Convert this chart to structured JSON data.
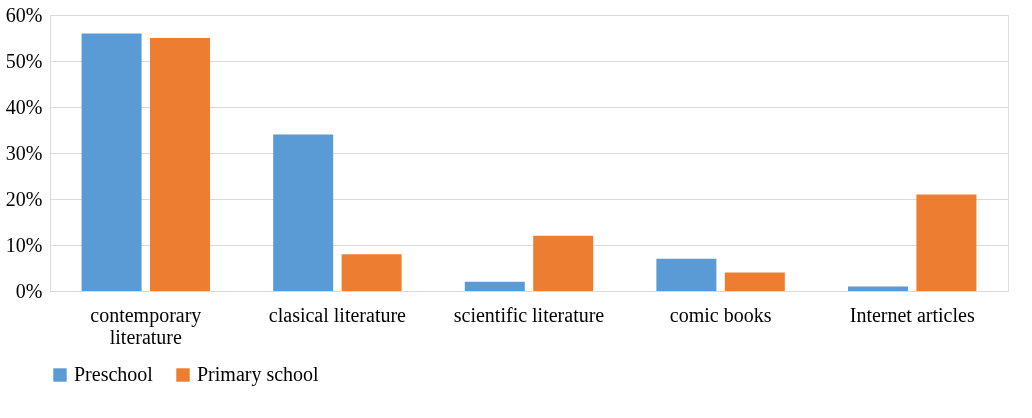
{
  "chart_data": {
    "type": "bar",
    "categories": [
      "contemporary literature",
      "clasical literature",
      "scientific literature",
      "comic books",
      "Internet articles"
    ],
    "series": [
      {
        "name": "Preschool",
        "color": "#5b9bd5",
        "values": [
          56,
          34,
          2,
          7,
          1
        ]
      },
      {
        "name": "Primary school",
        "color": "#ed7d31",
        "values": [
          55,
          8,
          12,
          4,
          21
        ]
      }
    ],
    "ylim": [
      0,
      60
    ],
    "yticks": [
      {
        "value": 0,
        "label": "0%"
      },
      {
        "value": 10,
        "label": "10%"
      },
      {
        "value": 20,
        "label": "20%"
      },
      {
        "value": 30,
        "label": "30%"
      },
      {
        "value": 40,
        "label": "40%"
      },
      {
        "value": 50,
        "label": "50%"
      },
      {
        "value": 60,
        "label": "60%"
      }
    ],
    "grid": "y",
    "legend": "bottom"
  }
}
